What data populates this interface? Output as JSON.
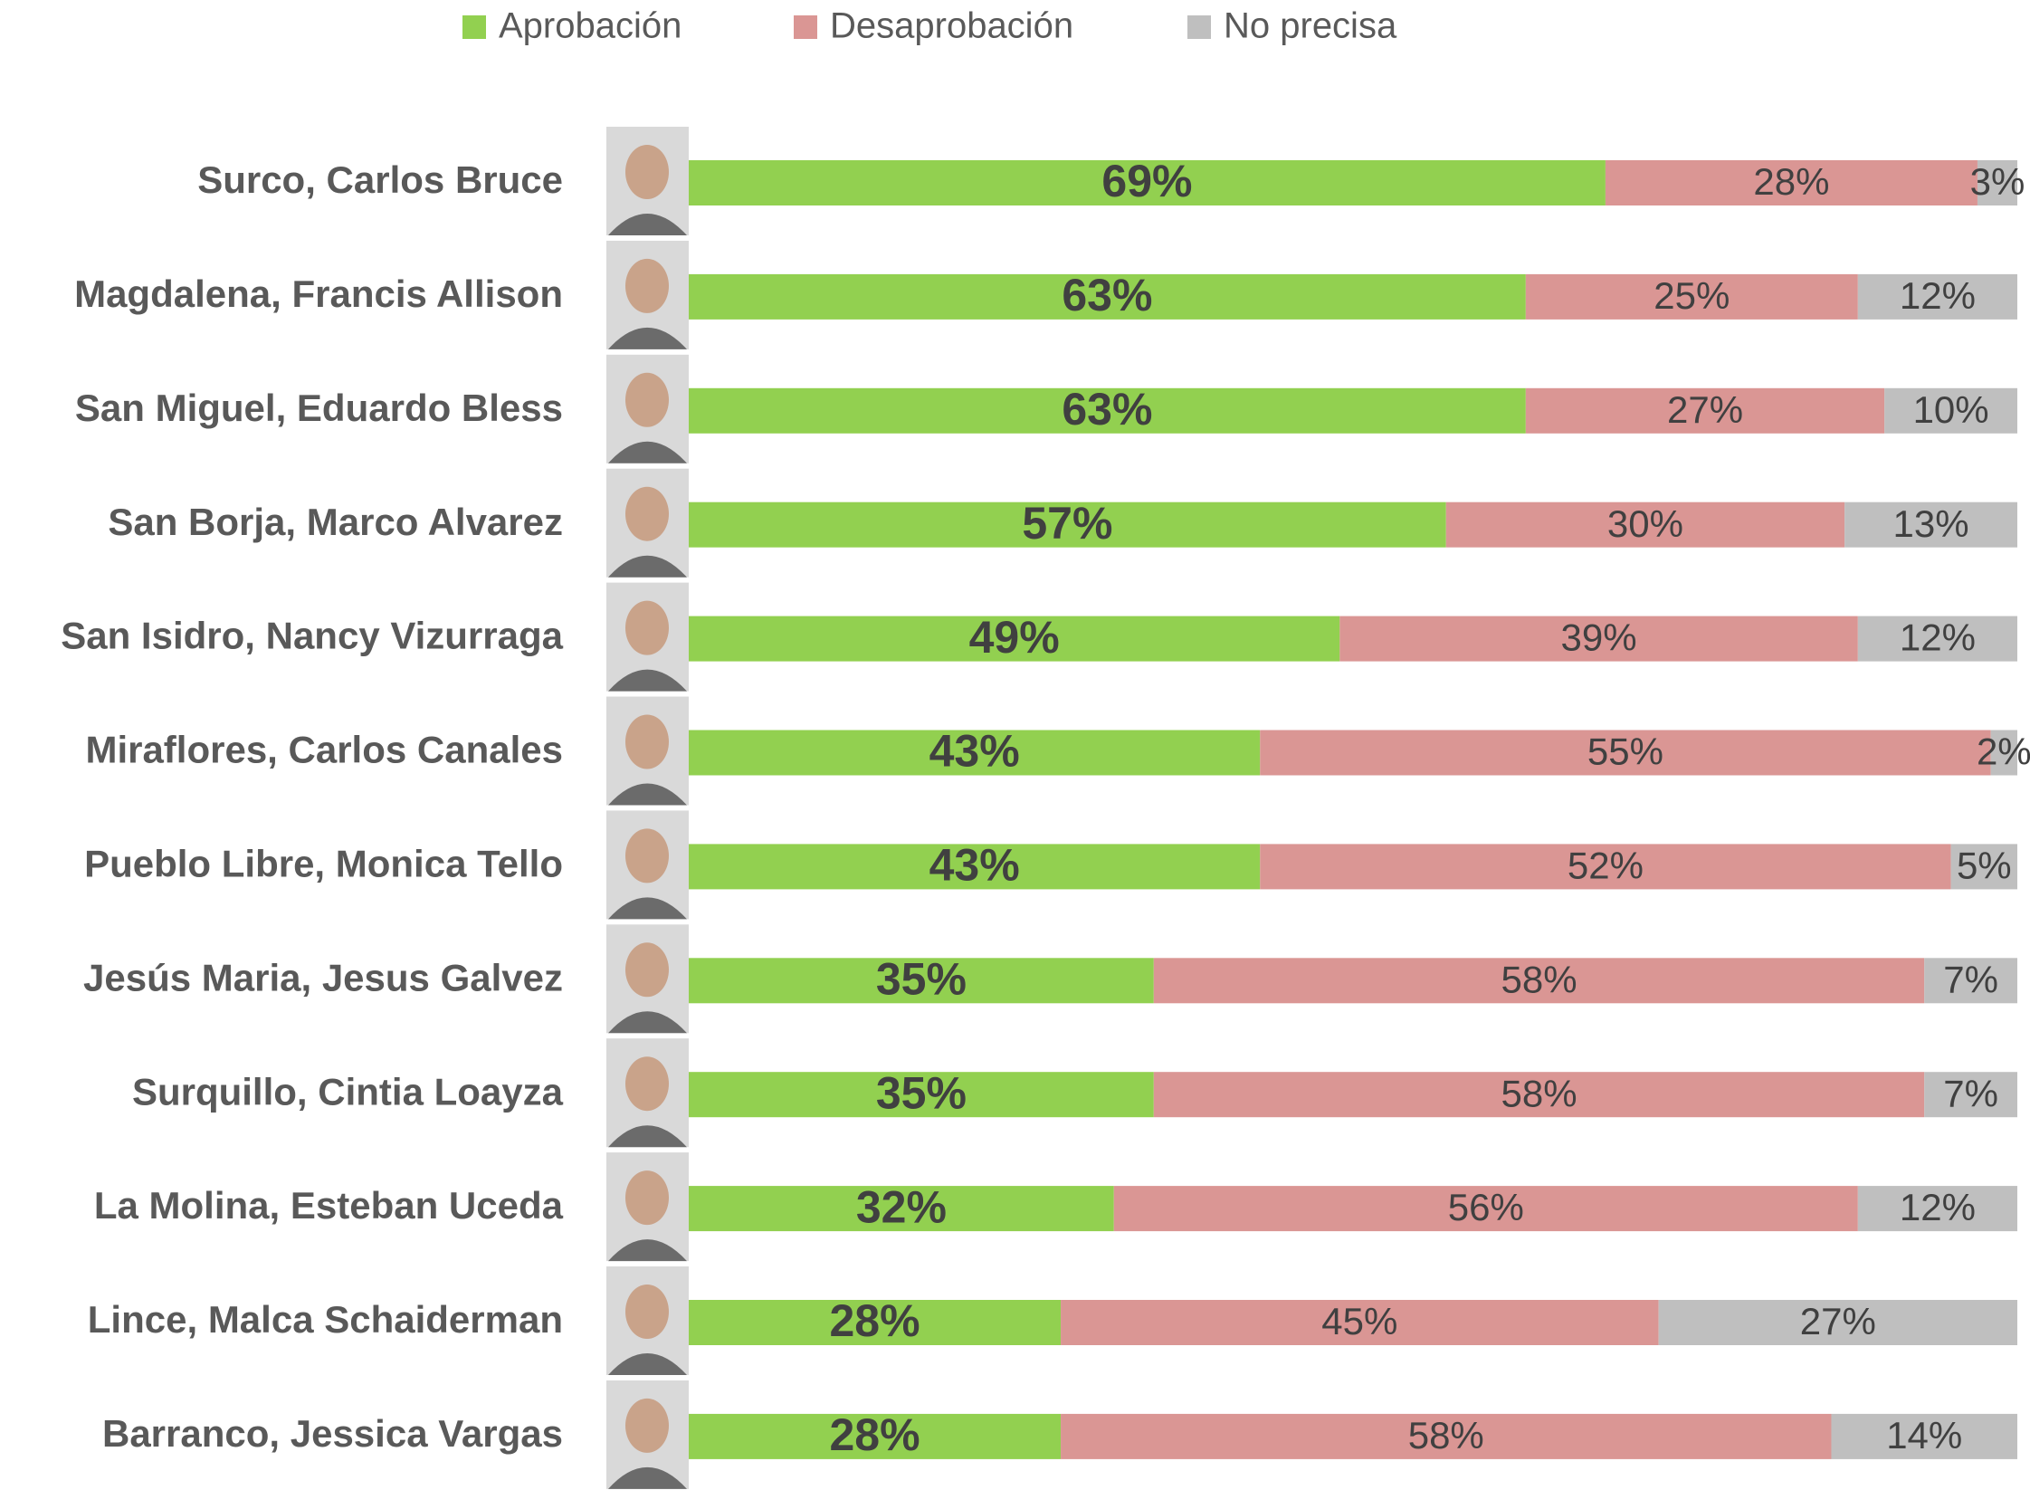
{
  "chart_data": {
    "type": "stacked-bar-horizontal",
    "categories": [
      "Surco, Carlos Bruce",
      "Magdalena, Francis Allison",
      "San Miguel, Eduardo Bless",
      "San Borja, Marco Alvarez",
      "San Isidro, Nancy Vizurraga",
      "Miraflores, Carlos Canales",
      "Pueblo Libre, Monica Tello",
      "Jesús Maria, Jesus Galvez",
      "Surquillo, Cintia Loayza",
      "La Molina, Esteban Uceda",
      "Lince, Malca Schaiderman",
      "Barranco, Jessica Vargas"
    ],
    "series": [
      {
        "name": "Aprobación",
        "color": "#92d050",
        "values": [
          69,
          63,
          63,
          57,
          49,
          43,
          43,
          35,
          35,
          32,
          28,
          28
        ],
        "value_labels": [
          "69%",
          "63%",
          "63%",
          "57%",
          "49%",
          "43%",
          "43%",
          "35%",
          "35%",
          "32%",
          "28%",
          "28%"
        ]
      },
      {
        "name": "Desaprobación",
        "color": "#da9694",
        "values": [
          28,
          25,
          27,
          30,
          39,
          55,
          52,
          58,
          58,
          56,
          45,
          58
        ],
        "value_labels": [
          "28%",
          "25%",
          "27%",
          "30%",
          "39%",
          "55%",
          "52%",
          "58%",
          "58%",
          "56%",
          "45%",
          "58%"
        ]
      },
      {
        "name": "No precisa",
        "color": "#bfbfbf",
        "values": [
          3,
          12,
          10,
          13,
          12,
          2,
          5,
          7,
          7,
          12,
          27,
          14
        ],
        "value_labels": [
          "3%",
          "12%",
          "10%",
          "13%",
          "12%",
          "2%",
          "5%",
          "7%",
          "7%",
          "12%",
          "27%",
          "14%"
        ]
      }
    ],
    "xlim": [
      0,
      100
    ],
    "legend": "top"
  }
}
